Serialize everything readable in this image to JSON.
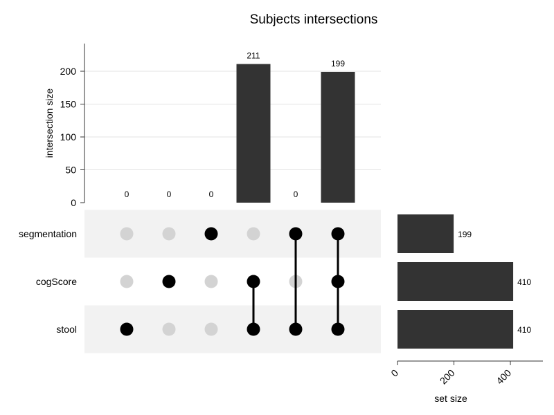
{
  "chart_data": {
    "type": "bar",
    "title": "Subjects intersections",
    "intersection_axis": {
      "label": "intersection size",
      "ylim": [
        0,
        240
      ],
      "ticks": [
        0,
        50,
        100,
        150,
        200
      ]
    },
    "sets": [
      {
        "name": "segmentation",
        "size": 199
      },
      {
        "name": "cogScore",
        "size": 410
      },
      {
        "name": "stool",
        "size": 410
      }
    ],
    "intersections": [
      {
        "members": [
          "stool"
        ],
        "size": 0
      },
      {
        "members": [
          "cogScore"
        ],
        "size": 0
      },
      {
        "members": [
          "segmentation"
        ],
        "size": 0
      },
      {
        "members": [
          "cogScore",
          "stool"
        ],
        "size": 211
      },
      {
        "members": [
          "segmentation",
          "stool"
        ],
        "size": 0
      },
      {
        "members": [
          "segmentation",
          "cogScore",
          "stool"
        ],
        "size": 199
      }
    ],
    "set_size_axis": {
      "label": "set size",
      "xlim": [
        0,
        500
      ],
      "ticks": [
        0,
        200,
        400
      ]
    },
    "colors": {
      "bar": "#333333",
      "dot_active": "#000000",
      "dot_inactive": "#d3d3d3",
      "band": "#f2f2f2"
    },
    "grid": true
  }
}
